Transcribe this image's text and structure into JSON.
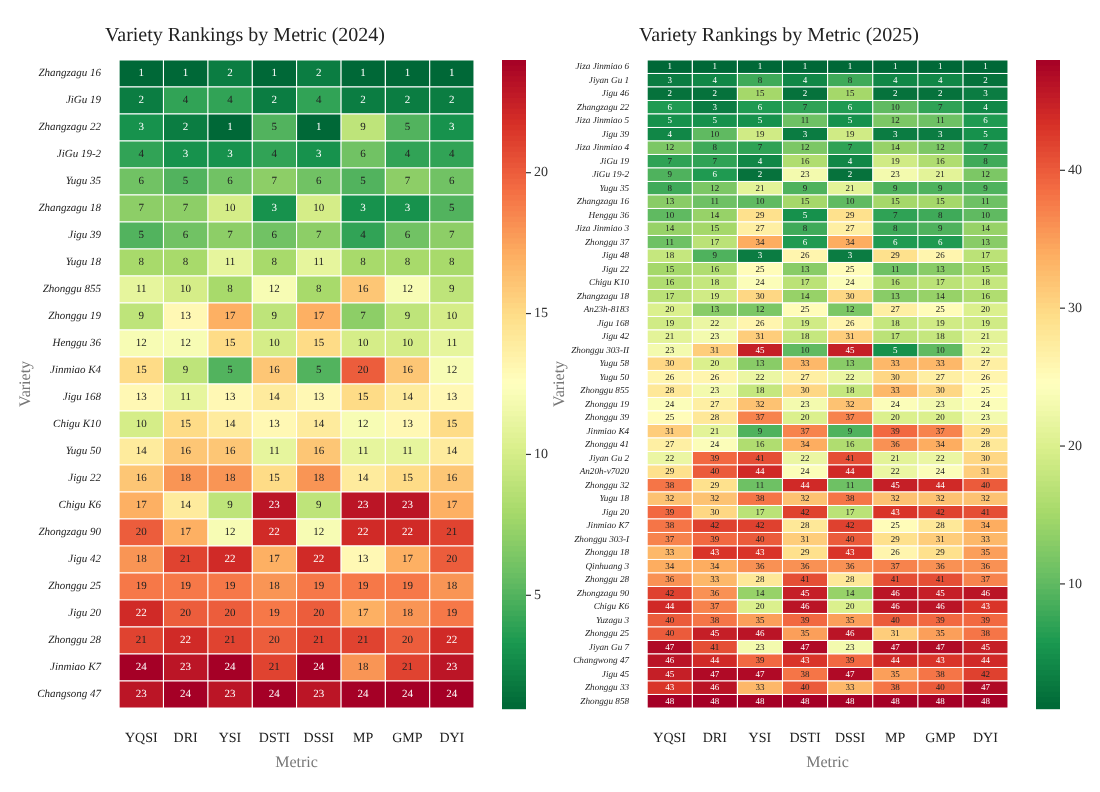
{
  "chart_data": [
    {
      "type": "heatmap",
      "title": "Variety Rankings by Metric (2024)",
      "xlabel": "Metric",
      "ylabel": "Variety",
      "data_labels": true,
      "clim": [
        1,
        24
      ],
      "cticks": [
        5,
        10,
        15,
        20
      ],
      "categories": [
        "YQSI",
        "DRI",
        "YSI",
        "DSTI",
        "DSSI",
        "MP",
        "GMP",
        "DYI"
      ],
      "y_categories": [
        "Zhangzagu 16",
        "JiGu 19",
        "Zhangzagu 22",
        "JiGu 19-2",
        "Yugu 35",
        "Zhangzagu 18",
        "Jigu 39",
        "Yugu 18",
        "Zhonggu 855",
        "Zhonggu 19",
        "Henggu 36",
        "Jinmiao K4",
        "Jigu 168",
        "Chigu K10",
        "Yugu 50",
        "Jigu 22",
        "Chigu K6",
        "Zhongzagu 90",
        "Jigu 42",
        "Zhonggu 25",
        "Jigu 20",
        "Zhonggu 28",
        "Jinmiao K7",
        "Changsong 47"
      ],
      "cells": [
        [
          1,
          1,
          2,
          1,
          2,
          1,
          1,
          1
        ],
        [
          2,
          4,
          4,
          2,
          4,
          2,
          2,
          2
        ],
        [
          3,
          2,
          1,
          5,
          1,
          9,
          5,
          3
        ],
        [
          4,
          3,
          3,
          4,
          3,
          6,
          4,
          4
        ],
        [
          6,
          5,
          6,
          7,
          6,
          5,
          7,
          6
        ],
        [
          7,
          7,
          10,
          3,
          10,
          3,
          3,
          5
        ],
        [
          5,
          6,
          7,
          6,
          7,
          4,
          6,
          7
        ],
        [
          8,
          8,
          11,
          8,
          11,
          8,
          8,
          8
        ],
        [
          11,
          10,
          8,
          12,
          8,
          16,
          12,
          9
        ],
        [
          9,
          13,
          17,
          9,
          17,
          7,
          9,
          10
        ],
        [
          12,
          12,
          15,
          10,
          15,
          10,
          10,
          11
        ],
        [
          15,
          9,
          5,
          16,
          5,
          20,
          16,
          12
        ],
        [
          13,
          11,
          13,
          14,
          13,
          15,
          14,
          13
        ],
        [
          10,
          15,
          14,
          13,
          14,
          12,
          13,
          15
        ],
        [
          14,
          16,
          16,
          11,
          16,
          11,
          11,
          14
        ],
        [
          16,
          18,
          18,
          15,
          18,
          14,
          15,
          16
        ],
        [
          17,
          14,
          9,
          23,
          9,
          23,
          23,
          17
        ],
        [
          20,
          17,
          12,
          22,
          12,
          22,
          22,
          21
        ],
        [
          18,
          21,
          22,
          17,
          22,
          13,
          17,
          20
        ],
        [
          19,
          19,
          19,
          18,
          19,
          19,
          19,
          18
        ],
        [
          22,
          20,
          20,
          19,
          20,
          17,
          18,
          19
        ],
        [
          21,
          22,
          21,
          20,
          21,
          21,
          20,
          22
        ],
        [
          24,
          23,
          24,
          21,
          24,
          18,
          21,
          23
        ],
        [
          23,
          24,
          23,
          24,
          23,
          24,
          24,
          24
        ]
      ]
    },
    {
      "type": "heatmap",
      "title": "Variety Rankings by Metric (2025)",
      "xlabel": "Metric",
      "ylabel": "Variety",
      "data_labels": true,
      "clim": [
        1,
        48
      ],
      "cticks": [
        10,
        20,
        30,
        40
      ],
      "categories": [
        "YQSI",
        "DRI",
        "YSI",
        "DSTI",
        "DSSI",
        "MP",
        "GMP",
        "DYI"
      ],
      "y_categories": [
        "Jiza Jinmiao 6",
        "Jiyan Gu 1",
        "Jigu 46",
        "Zhangzagu 22",
        "Jiza Jinmiao 5",
        "Jigu 39",
        "Jiza Jinmiao 4",
        "JiGu 19",
        "JiGu 19-2",
        "Yugu 35",
        "Zhangzagu 16",
        "Henggu 36",
        "Jiza Jinmiao 3",
        "Zhonggu 37",
        "Jigu 48",
        "Jigu 22",
        "Chigu K10",
        "Zhangzagu 18",
        "An23h-8183",
        "Jigu 168",
        "Jigu 42",
        "Zhonggu 303-II",
        "Yugu 58",
        "Yugu 50",
        "Zhonggu 855",
        "Zhonggu 19",
        "Zhonggu 39",
        "Jinmiao K4",
        "Zhonggu 41",
        "Jiyan Gu 2",
        "An20h-v7020",
        "Zhonggu 32",
        "Yugu 18",
        "Jigu 20",
        "Jinmiao K7",
        "Zhonggu 303-I",
        "Zhonggu 18",
        "Qinhuang 3",
        "Zhonggu 28",
        "Zhongzagu 90",
        "Chigu K6",
        "Yuzagu 3",
        "Zhonggu 25",
        "Jiyan Gu 7",
        "Changwong 47",
        "Jigu 45",
        "Zhonggu 33",
        "Zhonggu 858"
      ],
      "cells": [
        [
          1,
          1,
          1,
          1,
          1,
          1,
          1,
          1
        ],
        [
          3,
          4,
          8,
          4,
          8,
          4,
          4,
          2
        ],
        [
          2,
          2,
          15,
          2,
          15,
          2,
          2,
          3
        ],
        [
          6,
          3,
          6,
          7,
          6,
          10,
          7,
          4
        ],
        [
          5,
          5,
          5,
          11,
          5,
          12,
          11,
          6
        ],
        [
          4,
          10,
          19,
          3,
          19,
          3,
          3,
          5
        ],
        [
          12,
          8,
          7,
          12,
          7,
          14,
          12,
          7
        ],
        [
          7,
          7,
          4,
          16,
          4,
          19,
          16,
          8
        ],
        [
          9,
          6,
          2,
          23,
          2,
          23,
          21,
          12
        ],
        [
          8,
          12,
          21,
          9,
          21,
          9,
          9,
          9
        ],
        [
          13,
          11,
          10,
          15,
          10,
          15,
          15,
          11
        ],
        [
          10,
          14,
          29,
          5,
          29,
          7,
          8,
          10
        ],
        [
          14,
          15,
          27,
          8,
          27,
          8,
          9,
          14
        ],
        [
          11,
          17,
          34,
          6,
          34,
          6,
          6,
          13
        ],
        [
          18,
          9,
          3,
          26,
          3,
          29,
          26,
          17
        ],
        [
          15,
          16,
          25,
          13,
          25,
          11,
          13,
          15
        ],
        [
          16,
          18,
          24,
          17,
          24,
          16,
          17,
          18
        ],
        [
          17,
          19,
          30,
          14,
          30,
          13,
          14,
          16
        ],
        [
          20,
          13,
          12,
          25,
          12,
          27,
          25,
          20
        ],
        [
          19,
          22,
          26,
          19,
          26,
          18,
          19,
          19
        ],
        [
          21,
          23,
          31,
          18,
          31,
          17,
          18,
          21
        ],
        [
          23,
          31,
          45,
          10,
          45,
          5,
          10,
          22
        ],
        [
          30,
          20,
          13,
          33,
          13,
          33,
          33,
          27
        ],
        [
          26,
          26,
          22,
          27,
          22,
          30,
          27,
          26
        ],
        [
          28,
          23,
          18,
          30,
          18,
          33,
          30,
          25
        ],
        [
          24,
          27,
          32,
          23,
          32,
          24,
          23,
          24
        ],
        [
          25,
          28,
          37,
          20,
          37,
          20,
          20,
          23
        ],
        [
          31,
          21,
          9,
          37,
          9,
          39,
          37,
          29
        ],
        [
          27,
          24,
          16,
          34,
          16,
          36,
          34,
          28
        ],
        [
          22,
          39,
          41,
          22,
          41,
          21,
          22,
          30
        ],
        [
          29,
          40,
          44,
          24,
          44,
          22,
          24,
          31
        ],
        [
          38,
          29,
          11,
          44,
          11,
          45,
          44,
          40
        ],
        [
          32,
          32,
          38,
          32,
          38,
          32,
          32,
          32
        ],
        [
          39,
          30,
          17,
          42,
          17,
          43,
          42,
          41
        ],
        [
          38,
          42,
          42,
          28,
          42,
          25,
          28,
          34
        ],
        [
          37,
          39,
          40,
          31,
          40,
          29,
          31,
          33
        ],
        [
          33,
          43,
          43,
          29,
          43,
          26,
          29,
          35
        ],
        [
          34,
          34,
          36,
          36,
          36,
          37,
          36,
          36
        ],
        [
          36,
          33,
          28,
          41,
          28,
          41,
          41,
          37
        ],
        [
          42,
          36,
          14,
          45,
          14,
          46,
          45,
          46
        ],
        [
          44,
          37,
          20,
          46,
          20,
          46,
          46,
          43
        ],
        [
          40,
          38,
          35,
          39,
          35,
          40,
          39,
          39
        ],
        [
          40,
          45,
          46,
          35,
          46,
          31,
          35,
          38
        ],
        [
          47,
          41,
          23,
          47,
          23,
          47,
          47,
          45
        ],
        [
          46,
          44,
          39,
          43,
          39,
          44,
          43,
          44
        ],
        [
          45,
          47,
          47,
          38,
          47,
          35,
          38,
          42
        ],
        [
          43,
          46,
          33,
          40,
          33,
          38,
          40,
          47
        ],
        [
          48,
          48,
          48,
          48,
          48,
          48,
          48,
          48
        ]
      ]
    }
  ]
}
